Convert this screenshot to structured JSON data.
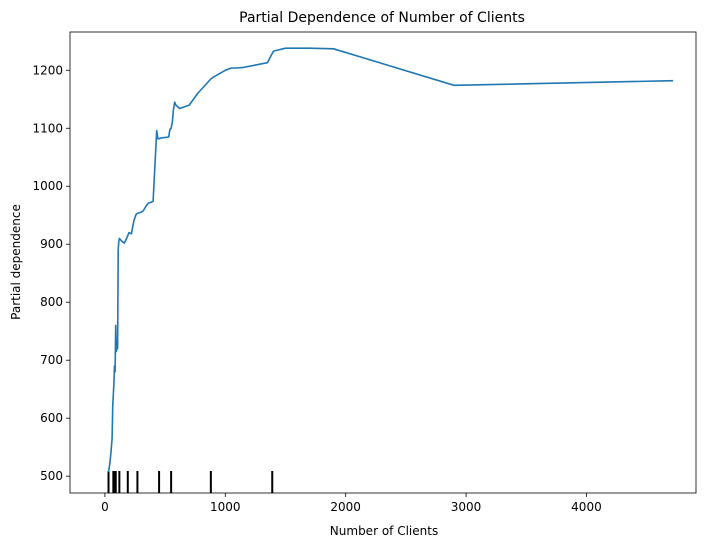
{
  "chart_data": {
    "type": "line",
    "title": "Partial Dependence of Number of Clients",
    "xlabel": "Number of Clients",
    "ylabel": "Partial dependence",
    "xlim": [
      -290,
      4910
    ],
    "ylim": [
      471,
      1266
    ],
    "x_ticks": [
      0,
      1000,
      2000,
      3000,
      4000
    ],
    "y_ticks": [
      500,
      600,
      700,
      800,
      900,
      1000,
      1100,
      1200
    ],
    "grid": false,
    "legend": "none",
    "colors": {
      "line": "#1f77b4",
      "rug": "#000000"
    },
    "series": [
      {
        "x": [
          30,
          40,
          50,
          60,
          65,
          70,
          75,
          80,
          85,
          90,
          95,
          100,
          105,
          110,
          115,
          120,
          140,
          160,
          180,
          200,
          220,
          240,
          260,
          280,
          300,
          320,
          340,
          360,
          380,
          400,
          430,
          440,
          445,
          450,
          455,
          460,
          530,
          540,
          550,
          560,
          570,
          580,
          590,
          620,
          700,
          770,
          880,
          900,
          1000,
          1050,
          1100,
          1150,
          1350,
          1380,
          1400,
          1500,
          1700,
          1900,
          2900,
          4720
        ],
        "y": [
          507,
          520,
          540,
          565,
          620,
          640,
          660,
          690,
          680,
          760,
          715,
          720,
          720,
          890,
          905,
          910,
          905,
          902,
          910,
          920,
          918,
          940,
          952,
          954,
          955,
          958,
          965,
          971,
          972,
          974,
          1096,
          1082,
          1082,
          1082,
          1082,
          1083,
          1085,
          1098,
          1100,
          1110,
          1133,
          1145,
          1140,
          1134,
          1140,
          1160,
          1185,
          1188,
          1200,
          1204,
          1204,
          1205,
          1213,
          1225,
          1233,
          1238,
          1238,
          1237,
          1174,
          1182
        ]
      }
    ],
    "rug_x": [
      30,
      70,
      80,
      90,
      120,
      190,
      270,
      450,
      550,
      880,
      1390
    ]
  }
}
